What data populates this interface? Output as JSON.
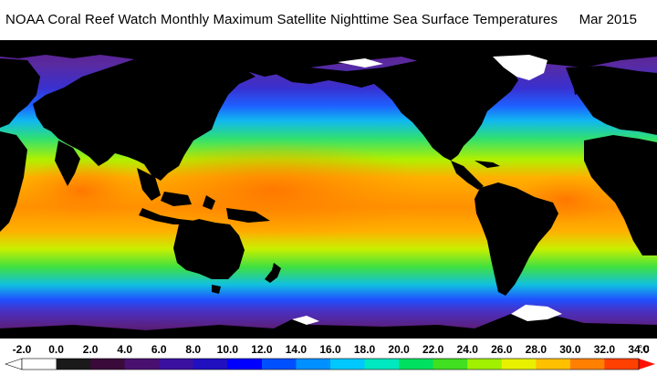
{
  "title": {
    "text": "NOAA Coral Reef Watch Monthly Maximum Satellite Nighttime Sea Surface Temperatures",
    "date": "Mar 2015"
  },
  "legend": {
    "unit": "°C",
    "labels": [
      "-2.0",
      "0.0",
      "2.0",
      "4.0",
      "6.0",
      "8.0",
      "10.0",
      "12.0",
      "14.0",
      "16.0",
      "18.0",
      "20.0",
      "22.0",
      "24.0",
      "26.0",
      "28.0",
      "30.0",
      "32.0",
      "34.0"
    ],
    "colors": [
      "#ffffff",
      "#1a1a1a",
      "#3a0a3a",
      "#4a1070",
      "#3a10a0",
      "#2010c0",
      "#0000ff",
      "#0050ff",
      "#0090ff",
      "#00c8ff",
      "#00e8c0",
      "#00e060",
      "#40e020",
      "#a0f000",
      "#e8f000",
      "#ffc000",
      "#ff8000",
      "#ff4000",
      "#ff1000"
    ]
  },
  "colors": {
    "land": "#000000",
    "ice": "#ffffff",
    "sst_polar": "#6a2a9a",
    "sst_subpolar": "#1e40ff",
    "sst_cool": "#10c8e0",
    "sst_temperate": "#40e040",
    "sst_subtropical": "#c8f000",
    "sst_tropical": "#ffb000",
    "sst_warm": "#ff8000"
  }
}
